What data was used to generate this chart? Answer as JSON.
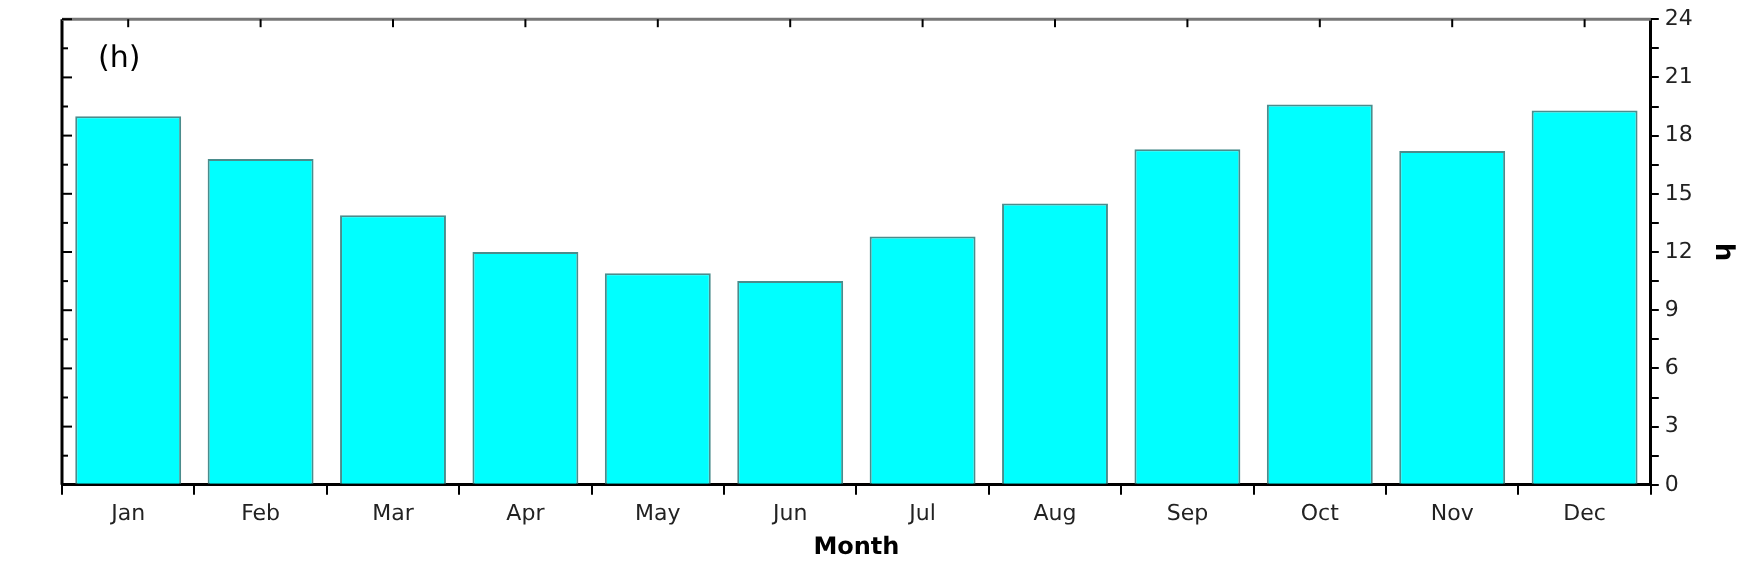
{
  "chart_data": {
    "type": "bar",
    "xlabel": "Month",
    "ylabel": "h",
    "annotations": [
      "(h)"
    ],
    "categories": [
      "Jan",
      "Feb",
      "Mar",
      "Apr",
      "May",
      "Jun",
      "Jul",
      "Aug",
      "Sep",
      "Oct",
      "Nov",
      "Dec"
    ],
    "values": [
      19.0,
      16.8,
      13.9,
      12.0,
      10.9,
      10.5,
      12.8,
      14.5,
      17.3,
      19.6,
      17.2,
      19.3
    ],
    "color": "#00ffff",
    "ylim": [
      0,
      24
    ],
    "yticks": [
      0,
      {
        "value": 1.5,
        "label": null
      },
      3,
      {
        "value": 4.5,
        "label": null
      },
      6,
      {
        "value": 7.5,
        "label": null
      },
      9,
      {
        "value": 10.5,
        "label": null
      },
      12,
      {
        "value": 13.5,
        "label": null
      },
      15,
      {
        "value": 16.5,
        "label": null
      },
      18,
      {
        "value": 19.5,
        "label": null
      },
      21,
      {
        "value": 22.5,
        "label": null
      },
      24
    ],
    "grid": false,
    "legend": false
  }
}
